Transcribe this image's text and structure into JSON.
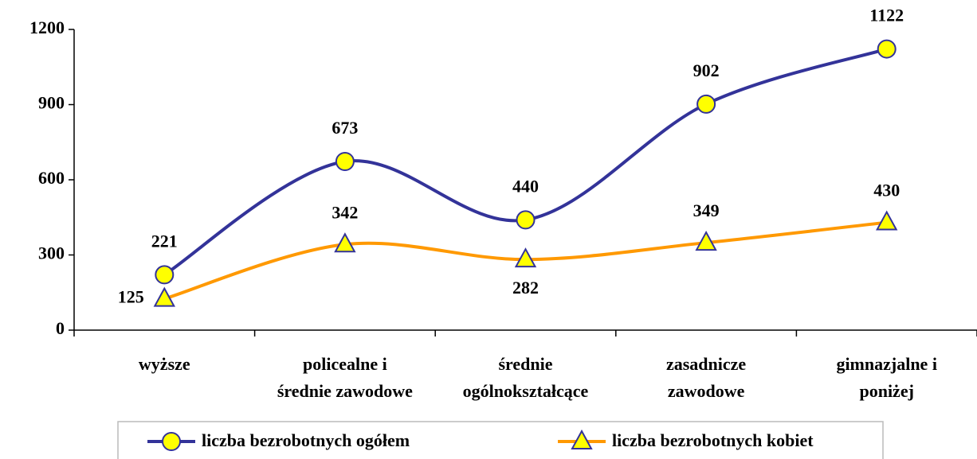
{
  "chart_data": {
    "type": "line",
    "categories": [
      [
        "wyższe"
      ],
      [
        "policealne i",
        "średnie zawodowe"
      ],
      [
        "średnie",
        "ogólnokształcące"
      ],
      [
        "zasadnicze",
        "zawodowe"
      ],
      [
        "gimnazjalne i",
        "poniżej"
      ]
    ],
    "series": [
      {
        "name": "liczba bezrobotnych ogółem",
        "color": "#333399",
        "marker": "circle",
        "values": [
          221,
          673,
          440,
          902,
          1122
        ]
      },
      {
        "name": "liczba bezrobotnych kobiet",
        "color": "#ff9900",
        "marker": "triangle",
        "values": [
          125,
          342,
          282,
          349,
          430
        ]
      }
    ],
    "marker_color": "#ffff00",
    "smooth": true,
    "ylim": [
      0,
      1200
    ],
    "yticks": [
      0,
      300,
      600,
      900,
      1200
    ],
    "legend": "bottom"
  }
}
